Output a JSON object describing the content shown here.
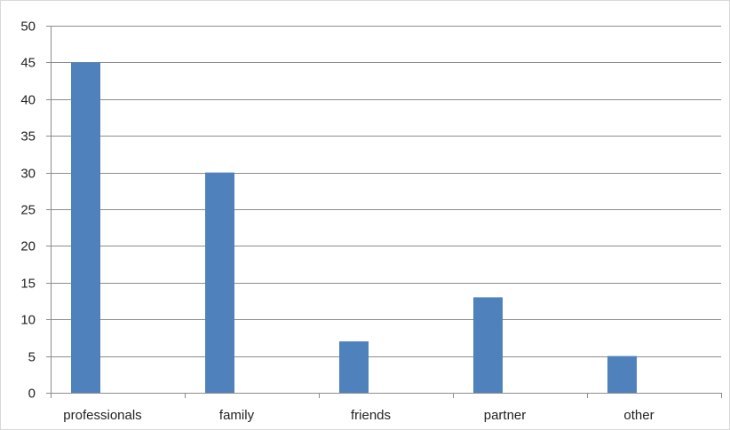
{
  "chart_data": {
    "type": "bar",
    "categories": [
      "professionals",
      "family",
      "friends",
      "partner",
      "other"
    ],
    "values": [
      45,
      30,
      7,
      13,
      5
    ],
    "title": "",
    "xlabel": "",
    "ylabel": "",
    "ylim": [
      0,
      50
    ],
    "yticks": [
      0,
      5,
      10,
      15,
      20,
      25,
      30,
      35,
      40,
      45,
      50
    ],
    "grid": true,
    "legend": "none",
    "colors": {
      "bar": "#4f81bd",
      "grid": "#8c8c8c",
      "axis": "#8c8c8c",
      "border": "#d9d9d9"
    }
  }
}
